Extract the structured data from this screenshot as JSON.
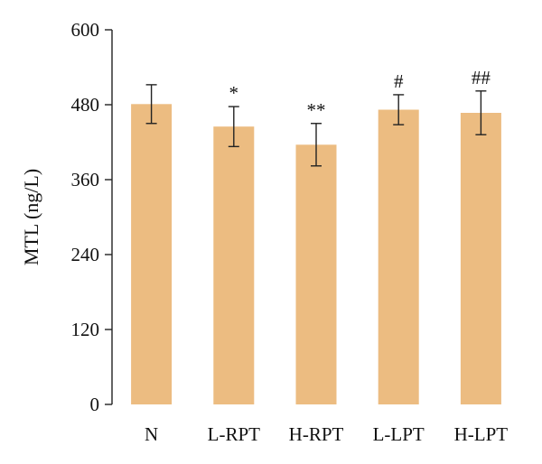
{
  "chart_data": {
    "type": "bar",
    "categories": [
      "N",
      "L-RPT",
      "H-RPT",
      "L-LPT",
      "H-LPT"
    ],
    "values": [
      481,
      445,
      416,
      472,
      467
    ],
    "errors": [
      31,
      32,
      34,
      24,
      35
    ],
    "annotations": [
      "",
      "*",
      "**",
      "#",
      "##"
    ],
    "ylabel": "MTL (ng/L)",
    "xlabel": "",
    "ylim": [
      0,
      600
    ],
    "yticks": [
      0,
      120,
      240,
      360,
      480,
      600
    ],
    "grid": false,
    "colors": {
      "bar": "#ecbc81",
      "axis": "#222222"
    }
  }
}
